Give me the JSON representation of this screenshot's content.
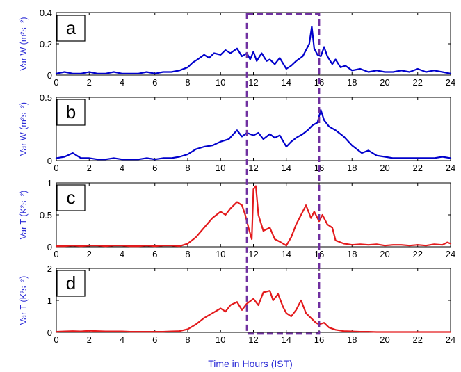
{
  "figure": {
    "xlabel": "Time in Hours (IST)",
    "highlight_window": {
      "x_start": 11.6,
      "x_end": 16.0,
      "color": "#7030a0"
    }
  },
  "chart_data": [
    {
      "type": "line",
      "panel_label": "a",
      "ylabel": "Var W (m²s⁻²)",
      "xlim": [
        0,
        24
      ],
      "ylim": [
        0,
        0.4
      ],
      "yticks": [
        "0",
        "0.2",
        "0.4"
      ],
      "xticks": [
        "0",
        "2",
        "4",
        "6",
        "8",
        "10",
        "12",
        "14",
        "16",
        "18",
        "20",
        "22",
        "24"
      ],
      "series": [
        {
          "color": "#0000cc",
          "x": [
            0,
            0.5,
            1,
            1.5,
            2,
            2.5,
            3,
            3.5,
            4,
            4.5,
            5,
            5.5,
            6,
            6.5,
            7,
            7.5,
            8,
            8.3,
            8.6,
            9,
            9.3,
            9.6,
            10,
            10.3,
            10.6,
            11,
            11.3,
            11.6,
            11.8,
            12,
            12.2,
            12.5,
            12.8,
            13,
            13.3,
            13.6,
            14,
            14.3,
            14.6,
            15,
            15.2,
            15.4,
            15.55,
            15.7,
            15.9,
            16.1,
            16.3,
            16.5,
            16.8,
            17,
            17.3,
            17.6,
            18,
            18.5,
            19,
            19.5,
            20,
            20.5,
            21,
            21.5,
            22,
            22.5,
            23,
            23.5,
            24
          ],
          "values": [
            0.01,
            0.02,
            0.01,
            0.01,
            0.02,
            0.01,
            0.01,
            0.02,
            0.01,
            0.01,
            0.01,
            0.02,
            0.01,
            0.02,
            0.02,
            0.03,
            0.05,
            0.08,
            0.1,
            0.13,
            0.11,
            0.14,
            0.13,
            0.16,
            0.14,
            0.17,
            0.12,
            0.14,
            0.1,
            0.15,
            0.09,
            0.14,
            0.09,
            0.1,
            0.07,
            0.11,
            0.04,
            0.06,
            0.09,
            0.12,
            0.16,
            0.2,
            0.31,
            0.17,
            0.13,
            0.12,
            0.18,
            0.12,
            0.07,
            0.1,
            0.05,
            0.06,
            0.03,
            0.04,
            0.02,
            0.03,
            0.02,
            0.02,
            0.03,
            0.02,
            0.04,
            0.02,
            0.03,
            0.02,
            0.01
          ]
        }
      ]
    },
    {
      "type": "line",
      "panel_label": "b",
      "ylabel": "Var W (m²s⁻²)",
      "xlim": [
        0,
        24
      ],
      "ylim": [
        0,
        0.5
      ],
      "yticks": [
        "0",
        "0.5"
      ],
      "xticks": [
        "0",
        "2",
        "4",
        "6",
        "8",
        "10",
        "12",
        "14",
        "16",
        "18",
        "20",
        "22",
        "24"
      ],
      "series": [
        {
          "color": "#0000cc",
          "x": [
            0,
            0.5,
            1,
            1.5,
            2,
            2.5,
            3,
            3.5,
            4,
            4.5,
            5,
            5.5,
            6,
            6.5,
            7,
            7.5,
            8,
            8.5,
            9,
            9.5,
            10,
            10.5,
            11,
            11.3,
            11.6,
            12,
            12.3,
            12.6,
            13,
            13.3,
            13.6,
            14,
            14.3,
            14.6,
            15,
            15.3,
            15.6,
            15.9,
            16.1,
            16.3,
            16.6,
            17,
            17.5,
            18,
            18.3,
            18.6,
            19,
            19.5,
            20,
            20.5,
            21,
            21.5,
            22,
            22.5,
            23,
            23.5,
            24
          ],
          "values": [
            0.02,
            0.03,
            0.06,
            0.02,
            0.02,
            0.01,
            0.01,
            0.02,
            0.01,
            0.01,
            0.01,
            0.02,
            0.01,
            0.02,
            0.02,
            0.03,
            0.05,
            0.09,
            0.11,
            0.12,
            0.15,
            0.17,
            0.24,
            0.19,
            0.22,
            0.2,
            0.22,
            0.17,
            0.21,
            0.18,
            0.2,
            0.11,
            0.15,
            0.18,
            0.21,
            0.24,
            0.28,
            0.3,
            0.4,
            0.32,
            0.27,
            0.24,
            0.19,
            0.12,
            0.09,
            0.06,
            0.08,
            0.04,
            0.03,
            0.02,
            0.02,
            0.02,
            0.02,
            0.02,
            0.02,
            0.03,
            0.02
          ]
        }
      ]
    },
    {
      "type": "line",
      "panel_label": "c",
      "ylabel": "Var T (K²s⁻²)",
      "xlim": [
        0,
        24
      ],
      "ylim": [
        0,
        1
      ],
      "yticks": [
        "0",
        "0.5",
        "1"
      ],
      "xticks": [
        "0",
        "2",
        "4",
        "6",
        "8",
        "10",
        "12",
        "14",
        "16",
        "18",
        "20",
        "22",
        "24"
      ],
      "series": [
        {
          "color": "#e31a1c",
          "x": [
            0,
            0.5,
            1,
            1.5,
            2,
            2.5,
            3,
            3.5,
            4,
            4.5,
            5,
            5.5,
            6,
            6.5,
            7,
            7.5,
            8,
            8.5,
            9,
            9.5,
            10,
            10.3,
            10.6,
            11,
            11.3,
            11.5,
            11.7,
            11.9,
            12,
            12.15,
            12.3,
            12.6,
            13,
            13.3,
            13.6,
            14,
            14.3,
            14.6,
            15,
            15.2,
            15.5,
            15.7,
            16,
            16.2,
            16.5,
            16.8,
            17,
            17.5,
            18,
            18.5,
            19,
            19.5,
            20,
            20.5,
            21,
            21.5,
            22,
            22.5,
            23,
            23.5,
            23.8,
            24
          ],
          "values": [
            0.01,
            0.01,
            0.02,
            0.01,
            0.02,
            0.02,
            0.01,
            0.02,
            0.02,
            0.01,
            0.01,
            0.02,
            0.01,
            0.02,
            0.02,
            0.01,
            0.05,
            0.15,
            0.3,
            0.45,
            0.55,
            0.5,
            0.6,
            0.7,
            0.65,
            0.5,
            0.3,
            0.12,
            0.9,
            0.95,
            0.5,
            0.25,
            0.3,
            0.12,
            0.08,
            0.02,
            0.15,
            0.35,
            0.55,
            0.65,
            0.45,
            0.55,
            0.4,
            0.5,
            0.35,
            0.3,
            0.1,
            0.05,
            0.03,
            0.04,
            0.03,
            0.04,
            0.02,
            0.03,
            0.03,
            0.02,
            0.03,
            0.02,
            0.04,
            0.03,
            0.07,
            0.05
          ]
        }
      ]
    },
    {
      "type": "line",
      "panel_label": "d",
      "ylabel": "Var T (K²s⁻²)",
      "xlim": [
        0,
        24
      ],
      "ylim": [
        0,
        2
      ],
      "yticks": [
        "0",
        "1",
        "2"
      ],
      "xticks": [
        "0",
        "2",
        "4",
        "6",
        "8",
        "10",
        "12",
        "14",
        "16",
        "18",
        "20",
        "22",
        "24"
      ],
      "series": [
        {
          "color": "#e31a1c",
          "x": [
            0,
            0.5,
            1,
            1.5,
            2,
            2.5,
            3,
            3.5,
            4,
            4.5,
            5,
            5.5,
            6,
            6.5,
            7,
            7.5,
            8,
            8.5,
            9,
            9.5,
            10,
            10.3,
            10.6,
            11,
            11.3,
            11.6,
            12,
            12.3,
            12.6,
            13,
            13.2,
            13.5,
            13.8,
            14,
            14.3,
            14.6,
            14.9,
            15.2,
            15.5,
            15.8,
            16,
            16.3,
            16.6,
            17,
            17.5,
            18,
            18.5,
            19,
            19.5,
            20,
            20.5,
            21,
            21.5,
            22,
            22.5,
            23,
            23.5,
            24
          ],
          "values": [
            0.02,
            0.03,
            0.04,
            0.03,
            0.05,
            0.04,
            0.03,
            0.03,
            0.03,
            0.02,
            0.02,
            0.02,
            0.02,
            0.02,
            0.03,
            0.04,
            0.1,
            0.25,
            0.45,
            0.6,
            0.75,
            0.65,
            0.85,
            0.95,
            0.7,
            0.9,
            1.05,
            0.85,
            1.25,
            1.3,
            1.0,
            1.2,
            0.8,
            0.6,
            0.5,
            0.7,
            1.0,
            0.6,
            0.45,
            0.3,
            0.25,
            0.3,
            0.15,
            0.08,
            0.04,
            0.03,
            0.02,
            0.02,
            0.01,
            0.01,
            0.01,
            0.01,
            0.01,
            0.01,
            0.01,
            0.01,
            0.01,
            0.01
          ]
        }
      ]
    }
  ]
}
